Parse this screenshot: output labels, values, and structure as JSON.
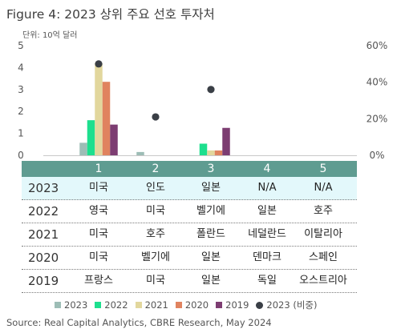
{
  "title": "Figure 4: 2023 상위 주요 선호 투자처",
  "unit_label": "단위: 10억 달러",
  "source": "Source: Real Capital Analytics, CBRE Research, May 2024",
  "colors": {
    "2023": "#9dbdb6",
    "2022": "#1ddf8e",
    "2021": "#e2d79d",
    "2020": "#e0835f",
    "2019": "#7d3d72",
    "share": "#3a3f46",
    "header": "#5f9c91",
    "highlight": "#e3f8fb"
  },
  "chart_data": {
    "type": "bar",
    "categories": [
      "1",
      "2",
      "3",
      "4",
      "5"
    ],
    "y_left": {
      "min": 0,
      "max": 5,
      "ticks": [
        "0",
        "1",
        "2",
        "3",
        "4",
        "5"
      ]
    },
    "y_right": {
      "min": 0,
      "max": 60,
      "ticks": [
        "0%",
        "20%",
        "40%",
        "60%"
      ]
    },
    "series": [
      {
        "name": "2023",
        "values": [
          0.57,
          0.15,
          0,
          0,
          0
        ]
      },
      {
        "name": "2022",
        "values": [
          1.6,
          0,
          0.53,
          0,
          0
        ]
      },
      {
        "name": "2021",
        "values": [
          4.2,
          0,
          0.22,
          0,
          0
        ]
      },
      {
        "name": "2020",
        "values": [
          3.35,
          0,
          0.22,
          0,
          0
        ]
      },
      {
        "name": "2019",
        "values": [
          1.4,
          0,
          1.25,
          0,
          0
        ]
      }
    ],
    "share_series": {
      "name": "2023 (비중)",
      "values": [
        50,
        21,
        36,
        null,
        null
      ]
    },
    "legend": [
      {
        "label": "2023",
        "marker": "square"
      },
      {
        "label": "2022",
        "marker": "square"
      },
      {
        "label": "2021",
        "marker": "square"
      },
      {
        "label": "2020",
        "marker": "square"
      },
      {
        "label": "2019",
        "marker": "square"
      },
      {
        "label": "2023 (비중)",
        "marker": "dot"
      }
    ]
  },
  "table": {
    "ranks": [
      "1",
      "2",
      "3",
      "4",
      "5"
    ],
    "rows": [
      {
        "year": "2023",
        "cells": [
          "미국",
          "인도",
          "일본",
          "N/A",
          "N/A"
        ],
        "highlight": true
      },
      {
        "year": "2022",
        "cells": [
          "영국",
          "미국",
          "벨기에",
          "일본",
          "호주"
        ],
        "highlight": false
      },
      {
        "year": "2021",
        "cells": [
          "미국",
          "호주",
          "폴란드",
          "네덜란드",
          "이탈리아"
        ],
        "highlight": false
      },
      {
        "year": "2020",
        "cells": [
          "미국",
          "벨기에",
          "일본",
          "덴마크",
          "스페인"
        ],
        "highlight": false
      },
      {
        "year": "2019",
        "cells": [
          "프랑스",
          "미국",
          "일본",
          "독일",
          "오스트리아"
        ],
        "highlight": false
      }
    ]
  }
}
